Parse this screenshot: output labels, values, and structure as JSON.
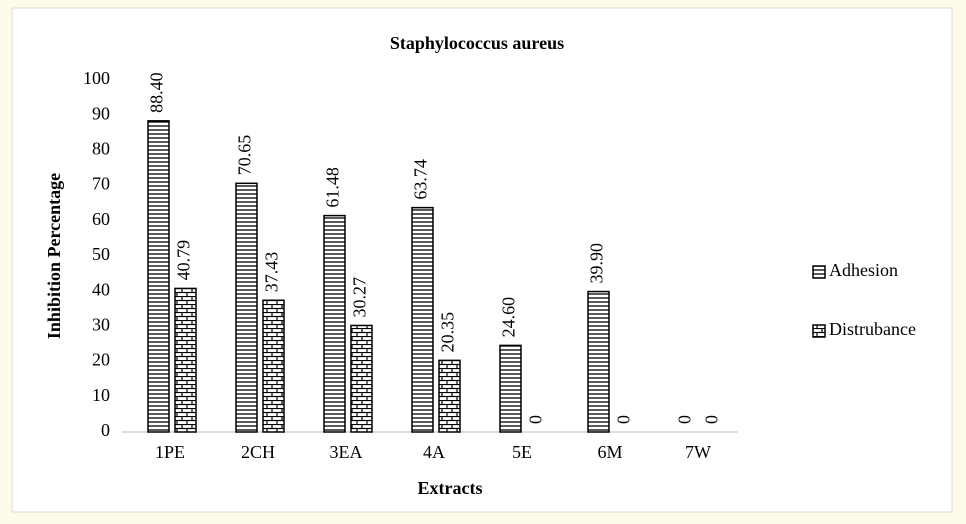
{
  "chart_data": {
    "type": "bar",
    "title": "Staphylococcus aureus",
    "x_label": "Extracts",
    "y_label": "Inhibition Percentage",
    "categories": [
      "1PE",
      "2CH",
      "3EA",
      "4A",
      "5E",
      "6M",
      "7W"
    ],
    "series": [
      {
        "name": "Adhesion",
        "color": "#000000",
        "pattern": "horizontal-stripes",
        "values": [
          88.4,
          70.65,
          61.48,
          63.74,
          24.6,
          39.9,
          0
        ],
        "value_labels": [
          "88.40",
          "70.65",
          "61.48",
          "63.74",
          "24.60",
          "39.90",
          "0"
        ]
      },
      {
        "name": "Distrubance",
        "color": "#000000",
        "pattern": "brick",
        "values": [
          40.79,
          37.43,
          30.27,
          20.35,
          0,
          0,
          0
        ]
      }
    ],
    "ylim": [
      0,
      100
    ],
    "yticks": [
      0,
      10,
      20,
      30,
      40,
      50,
      60,
      70,
      80,
      90,
      100
    ],
    "grid": false,
    "legend": "right"
  }
}
